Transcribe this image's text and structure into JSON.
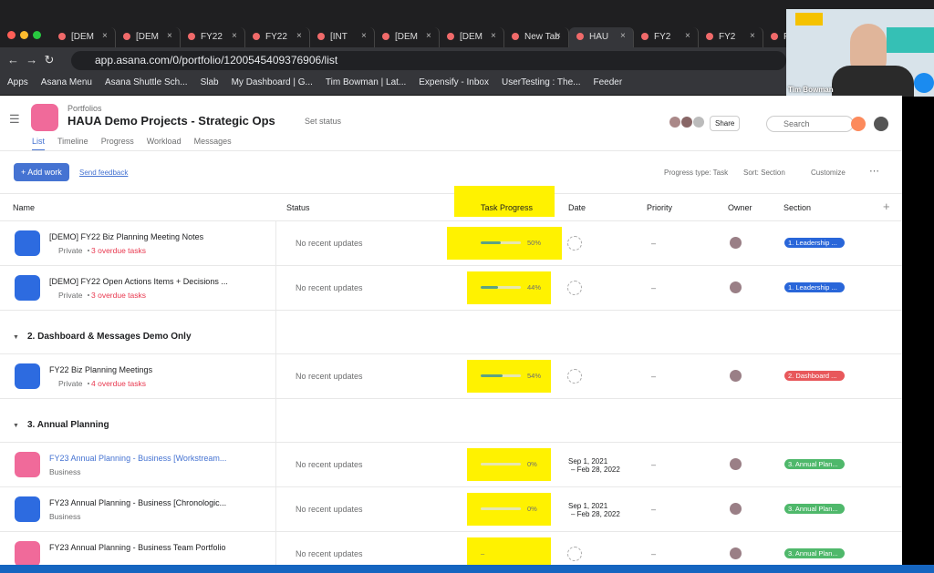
{
  "browser": {
    "tabs": [
      "[DEM",
      "[DEM",
      "FY22",
      "FY22",
      "[INT",
      "[DEM",
      "[DEM",
      "New Tab",
      "HAU",
      "FY2",
      "FY2",
      "FY"
    ],
    "active_tab": 8,
    "url": "app.asana.com/0/portfolio/1200545409376906/list",
    "bookmarks": [
      "Apps",
      "Asana Menu",
      "Asana Shuttle Sch...",
      "Slab",
      "My Dashboard | G...",
      "Tim Bowman | Lat...",
      "Expensify - Inbox",
      "UserTesting : The...",
      "Feeder"
    ]
  },
  "video": {
    "name": "Tim Bowman"
  },
  "header": {
    "breadcrumb": "Portfolios",
    "title": "HAUA Demo Projects - Strategic Ops",
    "status_button": "Set status",
    "tabs": [
      "List",
      "Timeline",
      "Progress",
      "Workload",
      "Messages"
    ],
    "share": "Share",
    "search": "Search"
  },
  "toolbar": {
    "add": "+ Add work",
    "feedback": "Send feedback",
    "progress_type": "Progress type: Task",
    "sort": "Sort: Section",
    "customize": "Customize"
  },
  "table": {
    "columns": [
      "Name",
      "Status",
      "Task Progress",
      "Date",
      "Priority",
      "Owner",
      "Section"
    ],
    "groups": [
      {
        "rows": [
          {
            "name": "[DEMO] FY22 Biz Planning Meeting Notes",
            "privacy": "Private",
            "overdue": "3 overdue tasks",
            "icon_color": "#2d6be0",
            "status": "No recent updates",
            "progress": 50,
            "progress_label": "50%",
            "priority": "–",
            "section": "1. Leadership ...",
            "section_color": "#2966d9"
          },
          {
            "name": "[DEMO] FY22 Open Actions Items + Decisions ...",
            "privacy": "Private",
            "overdue": "3 overdue tasks",
            "icon_color": "#2d6be0",
            "status": "No recent updates",
            "progress": 44,
            "progress_label": "44%",
            "priority": "–",
            "section": "1. Leadership ...",
            "section_color": "#2966d9"
          }
        ]
      },
      {
        "title": "2. Dashboard & Messages Demo Only",
        "rows": [
          {
            "name": "FY22 Biz Planning Meetings",
            "privacy": "Private",
            "overdue": "4 overdue tasks",
            "icon_color": "#2d6be0",
            "status": "No recent updates",
            "progress": 54,
            "progress_label": "54%",
            "priority": "–",
            "section": "2. Dashboard ...",
            "section_color": "#e8585b"
          }
        ]
      },
      {
        "title": "3. Annual Planning",
        "rows": [
          {
            "name": "FY23 Annual Planning - Business [Workstream...",
            "subtitle": "Business",
            "icon_color": "#f06a9a",
            "status": "No recent updates",
            "progress": 0,
            "progress_label": "0%",
            "date": [
              "Sep 1, 2021",
              "– Feb 28, 2022"
            ],
            "priority": "–",
            "section": "3. Annual Plan...",
            "section_color": "#4fb86b"
          },
          {
            "name": "FY23 Annual Planning - Business [Chronologic...",
            "subtitle": "Business",
            "icon_color": "#2d6be0",
            "status": "No recent updates",
            "progress": 0,
            "progress_label": "0%",
            "date": [
              "Sep 1, 2021",
              "– Feb 28, 2022"
            ],
            "priority": "–",
            "section": "3. Annual Plan...",
            "section_color": "#4fb86b"
          },
          {
            "name": "FY23 Annual Planning - Business Team Portfolio",
            "icon_color": "#f06a9a",
            "status": "No recent updates",
            "progress": null,
            "progress_label": "–",
            "priority": "–",
            "section": "3. Annual Plan...",
            "section_color": "#4fb86b"
          }
        ]
      }
    ]
  }
}
